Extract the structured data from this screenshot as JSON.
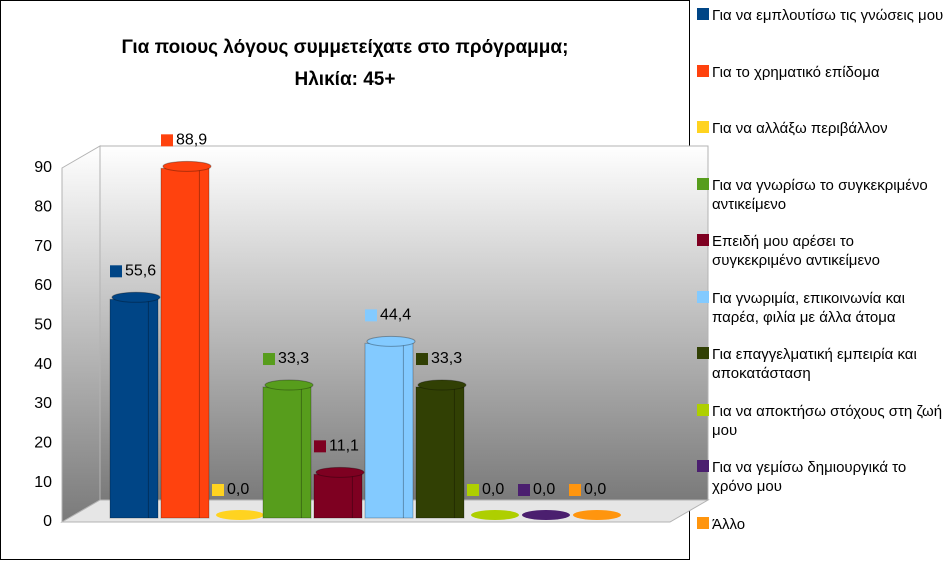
{
  "chart_data": {
    "type": "bar3d",
    "title": "Για ποιους λόγους συμμετείχατε στο πρόγραμμα;",
    "subtitle": "Ηλικία: 45+",
    "ylim": [
      0,
      90
    ],
    "yticks": [
      0,
      10,
      20,
      30,
      40,
      50,
      60,
      70,
      80,
      90
    ],
    "grid": false,
    "legend": "right",
    "series": [
      {
        "name": "Για να εμπλουτίσω τις γνώσεις μου",
        "color": "#004586",
        "values": [
          55.6
        ],
        "value_labels": [
          "55,6"
        ]
      },
      {
        "name": "Για το χρηματικό επίδομα",
        "color": "#ff420e",
        "values": [
          88.9
        ],
        "value_labels": [
          "88,9"
        ]
      },
      {
        "name": "Για να αλλάξω περιβάλλον",
        "color": "#ffd320",
        "values": [
          0.0
        ],
        "value_labels": [
          "0,0"
        ]
      },
      {
        "name": "Για να γνωρίσω το συγκεκριμένο αντικείμενο",
        "color": "#579d1c",
        "values": [
          33.3
        ],
        "value_labels": [
          "33,3"
        ]
      },
      {
        "name": "Επειδή μου αρέσει το συγκεκριμένο αντικείμενο",
        "color": "#7e0021",
        "values": [
          11.1
        ],
        "value_labels": [
          "11,1"
        ]
      },
      {
        "name": "Για γνωριμία, επικοινωνία και παρέα, φιλία με άλλα άτομα",
        "color": "#83caff",
        "values": [
          44.4
        ],
        "value_labels": [
          "44,4"
        ]
      },
      {
        "name": "Για επαγγελματική εμπειρία και αποκατάσταση",
        "color": "#314004",
        "values": [
          33.3
        ],
        "value_labels": [
          "33,3"
        ]
      },
      {
        "name": "Για να αποκτήσω στόχους στη ζωή μου",
        "color": "#aecf00",
        "values": [
          0.0
        ],
        "value_labels": [
          "0,0"
        ]
      },
      {
        "name": "Για να γεμίσω δημιουργικά το χρόνο μου",
        "color": "#4b1f6f",
        "values": [
          0.0
        ],
        "value_labels": [
          "0,0"
        ]
      },
      {
        "name": "Άλλο",
        "color": "#ff950e",
        "values": [
          0.0
        ],
        "value_labels": [
          "0,0"
        ]
      }
    ]
  }
}
